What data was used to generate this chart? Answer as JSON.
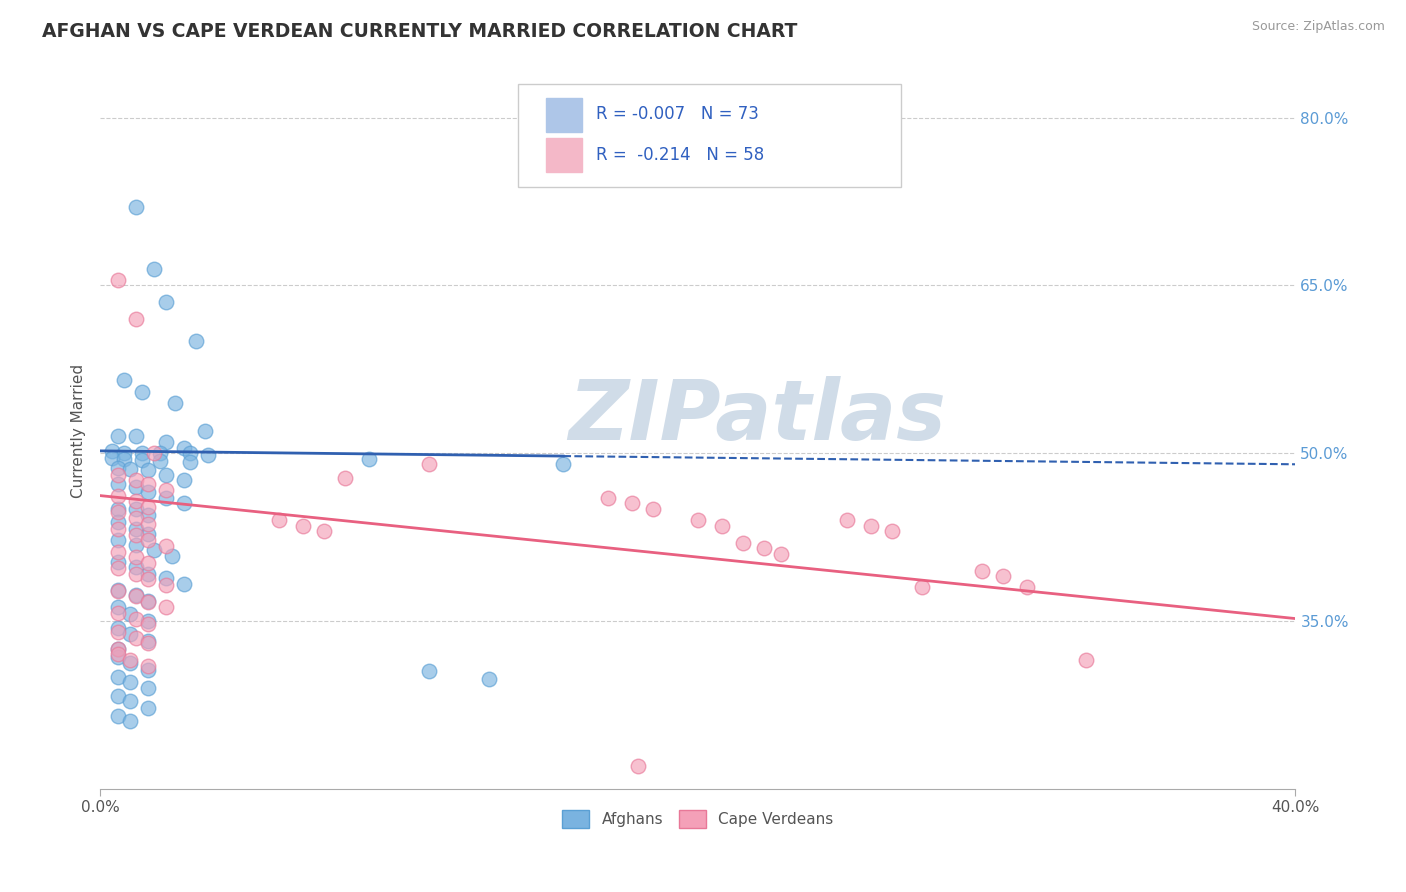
{
  "title": "AFGHAN VS CAPE VERDEAN CURRENTLY MARRIED CORRELATION CHART",
  "source_text": "Source: ZipAtlas.com",
  "ylabel": "Currently Married",
  "ylabel_right_ticks": [
    "35.0%",
    "50.0%",
    "65.0%",
    "80.0%"
  ],
  "ylabel_right_values": [
    0.35,
    0.5,
    0.65,
    0.8
  ],
  "x_min": 0.0,
  "x_max": 0.4,
  "y_min": 0.2,
  "y_max": 0.84,
  "blue_dot_color": "#7ab3e0",
  "blue_dot_edge": "#5a9fd4",
  "pink_dot_color": "#f4a0b8",
  "pink_dot_edge": "#e87898",
  "blue_line_color": "#3060b0",
  "pink_line_color": "#e86080",
  "blue_regression_slope": -0.03,
  "blue_regression_intercept": 0.502,
  "blue_line_solid_end": 0.155,
  "pink_regression_slope": -0.275,
  "pink_regression_intercept": 0.462,
  "watermark_text": "ZIPatlas",
  "watermark_color": "#d0dce8",
  "background_color": "#ffffff",
  "grid_color": "#cccccc",
  "blue_dots": [
    [
      0.012,
      0.72
    ],
    [
      0.018,
      0.665
    ],
    [
      0.022,
      0.635
    ],
    [
      0.032,
      0.6
    ],
    [
      0.008,
      0.565
    ],
    [
      0.014,
      0.555
    ],
    [
      0.025,
      0.545
    ],
    [
      0.035,
      0.52
    ],
    [
      0.006,
      0.515
    ],
    [
      0.012,
      0.515
    ],
    [
      0.022,
      0.51
    ],
    [
      0.028,
      0.505
    ],
    [
      0.004,
      0.502
    ],
    [
      0.008,
      0.5
    ],
    [
      0.014,
      0.5
    ],
    [
      0.02,
      0.5
    ],
    [
      0.03,
      0.5
    ],
    [
      0.036,
      0.498
    ],
    [
      0.004,
      0.496
    ],
    [
      0.008,
      0.495
    ],
    [
      0.014,
      0.494
    ],
    [
      0.02,
      0.493
    ],
    [
      0.03,
      0.492
    ],
    [
      0.006,
      0.487
    ],
    [
      0.01,
      0.486
    ],
    [
      0.016,
      0.485
    ],
    [
      0.022,
      0.48
    ],
    [
      0.028,
      0.476
    ],
    [
      0.006,
      0.472
    ],
    [
      0.012,
      0.47
    ],
    [
      0.016,
      0.465
    ],
    [
      0.022,
      0.46
    ],
    [
      0.028,
      0.455
    ],
    [
      0.006,
      0.45
    ],
    [
      0.012,
      0.45
    ],
    [
      0.016,
      0.445
    ],
    [
      0.09,
      0.495
    ],
    [
      0.155,
      0.49
    ],
    [
      0.006,
      0.438
    ],
    [
      0.012,
      0.432
    ],
    [
      0.016,
      0.428
    ],
    [
      0.006,
      0.422
    ],
    [
      0.012,
      0.418
    ],
    [
      0.018,
      0.413
    ],
    [
      0.024,
      0.408
    ],
    [
      0.006,
      0.403
    ],
    [
      0.012,
      0.398
    ],
    [
      0.016,
      0.392
    ],
    [
      0.022,
      0.388
    ],
    [
      0.028,
      0.383
    ],
    [
      0.006,
      0.378
    ],
    [
      0.012,
      0.373
    ],
    [
      0.016,
      0.368
    ],
    [
      0.006,
      0.362
    ],
    [
      0.01,
      0.356
    ],
    [
      0.016,
      0.35
    ],
    [
      0.006,
      0.344
    ],
    [
      0.01,
      0.338
    ],
    [
      0.016,
      0.332
    ],
    [
      0.006,
      0.325
    ],
    [
      0.11,
      0.305
    ],
    [
      0.13,
      0.298
    ],
    [
      0.006,
      0.318
    ],
    [
      0.01,
      0.312
    ],
    [
      0.016,
      0.306
    ],
    [
      0.006,
      0.3
    ],
    [
      0.01,
      0.295
    ],
    [
      0.016,
      0.29
    ],
    [
      0.006,
      0.283
    ],
    [
      0.01,
      0.278
    ],
    [
      0.016,
      0.272
    ],
    [
      0.006,
      0.265
    ],
    [
      0.01,
      0.26
    ]
  ],
  "pink_dots": [
    [
      0.006,
      0.655
    ],
    [
      0.012,
      0.62
    ],
    [
      0.018,
      0.5
    ],
    [
      0.006,
      0.48
    ],
    [
      0.012,
      0.476
    ],
    [
      0.016,
      0.472
    ],
    [
      0.022,
      0.467
    ],
    [
      0.006,
      0.462
    ],
    [
      0.012,
      0.457
    ],
    [
      0.016,
      0.452
    ],
    [
      0.006,
      0.447
    ],
    [
      0.012,
      0.442
    ],
    [
      0.016,
      0.437
    ],
    [
      0.006,
      0.432
    ],
    [
      0.012,
      0.427
    ],
    [
      0.016,
      0.422
    ],
    [
      0.022,
      0.417
    ],
    [
      0.006,
      0.412
    ],
    [
      0.012,
      0.407
    ],
    [
      0.016,
      0.402
    ],
    [
      0.006,
      0.397
    ],
    [
      0.012,
      0.392
    ],
    [
      0.016,
      0.387
    ],
    [
      0.022,
      0.382
    ],
    [
      0.006,
      0.377
    ],
    [
      0.012,
      0.372
    ],
    [
      0.016,
      0.367
    ],
    [
      0.022,
      0.362
    ],
    [
      0.006,
      0.357
    ],
    [
      0.012,
      0.352
    ],
    [
      0.016,
      0.347
    ],
    [
      0.06,
      0.44
    ],
    [
      0.068,
      0.435
    ],
    [
      0.075,
      0.43
    ],
    [
      0.082,
      0.478
    ],
    [
      0.11,
      0.49
    ],
    [
      0.17,
      0.46
    ],
    [
      0.178,
      0.455
    ],
    [
      0.185,
      0.45
    ],
    [
      0.2,
      0.44
    ],
    [
      0.208,
      0.435
    ],
    [
      0.215,
      0.42
    ],
    [
      0.222,
      0.415
    ],
    [
      0.228,
      0.41
    ],
    [
      0.25,
      0.44
    ],
    [
      0.258,
      0.435
    ],
    [
      0.265,
      0.43
    ],
    [
      0.275,
      0.38
    ],
    [
      0.295,
      0.395
    ],
    [
      0.302,
      0.39
    ],
    [
      0.31,
      0.38
    ],
    [
      0.33,
      0.315
    ],
    [
      0.006,
      0.34
    ],
    [
      0.012,
      0.335
    ],
    [
      0.016,
      0.33
    ],
    [
      0.006,
      0.325
    ],
    [
      0.006,
      0.32
    ],
    [
      0.01,
      0.315
    ],
    [
      0.016,
      0.31
    ],
    [
      0.18,
      0.22
    ]
  ]
}
